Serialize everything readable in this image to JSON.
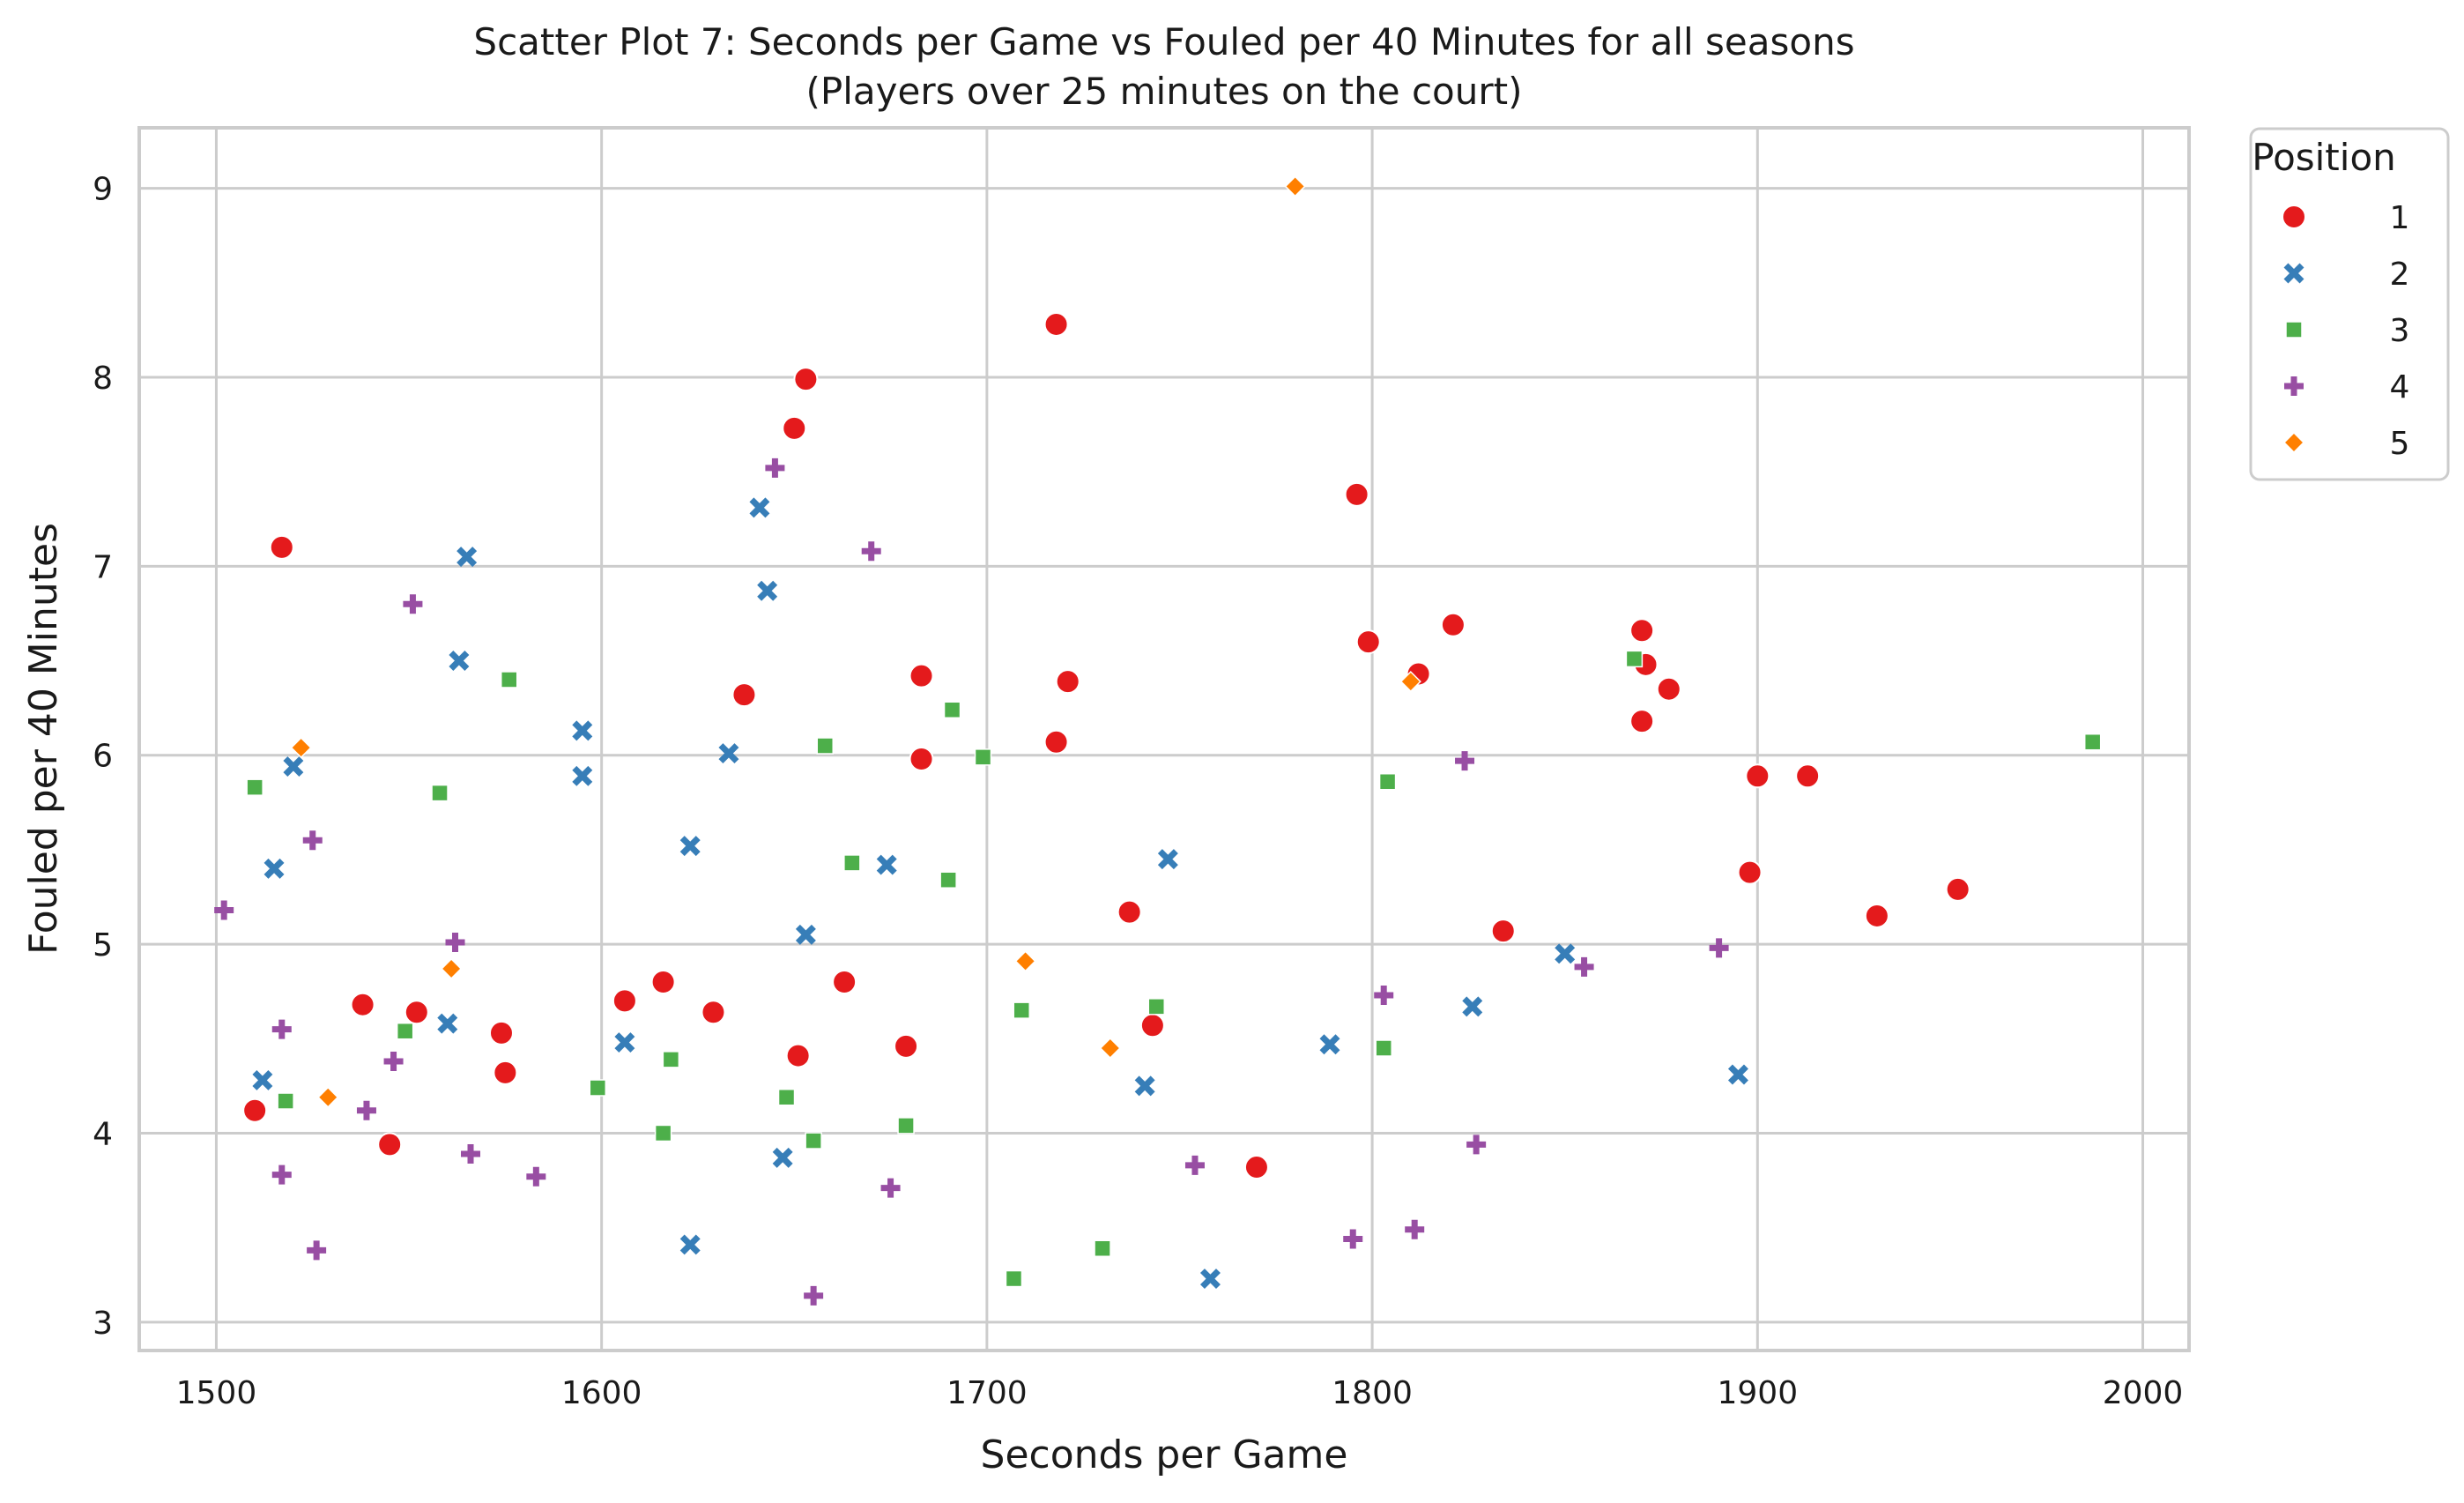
{
  "chart_data": {
    "type": "scatter",
    "title": "Scatter Plot 7: Seconds per Game vs Fouled per 40 Minutes for all seasons",
    "subtitle": "(Players over 25 minutes on the court)",
    "xlabel": "Seconds per Game",
    "ylabel": "Fouled per 40 Minutes",
    "xlim": [
      1480,
      2012
    ],
    "ylim": [
      2.85,
      9.32
    ],
    "xticks": [
      1500,
      1600,
      1700,
      1800,
      1900,
      2000
    ],
    "yticks": [
      3,
      4,
      5,
      6,
      7,
      8,
      9
    ],
    "grid": true,
    "legend": {
      "title": "Position",
      "placement": "outside-top-right"
    },
    "series": [
      {
        "name": "1",
        "marker": "circle",
        "color": "#e41a1c",
        "points": [
          [
            1510,
            4.12
          ],
          [
            1517,
            7.1
          ],
          [
            1538,
            4.68
          ],
          [
            1545,
            3.94
          ],
          [
            1552,
            4.64
          ],
          [
            1574,
            4.53
          ],
          [
            1575,
            4.32
          ],
          [
            1606,
            4.7
          ],
          [
            1616,
            4.8
          ],
          [
            1629,
            4.64
          ],
          [
            1637,
            6.32
          ],
          [
            1650,
            7.73
          ],
          [
            1651,
            4.41
          ],
          [
            1653,
            7.99
          ],
          [
            1663,
            4.8
          ],
          [
            1679,
            4.46
          ],
          [
            1683,
            6.42
          ],
          [
            1683,
            5.98
          ],
          [
            1718,
            8.28
          ],
          [
            1718,
            6.07
          ],
          [
            1721,
            6.39
          ],
          [
            1737,
            5.17
          ],
          [
            1743,
            4.57
          ],
          [
            1770,
            3.82
          ],
          [
            1796,
            7.38
          ],
          [
            1799,
            6.6
          ],
          [
            1812,
            6.43
          ],
          [
            1821,
            6.69
          ],
          [
            1834,
            5.07
          ],
          [
            1870,
            6.66
          ],
          [
            1871,
            6.48
          ],
          [
            1870,
            6.18
          ],
          [
            1877,
            6.35
          ],
          [
            1898,
            5.38
          ],
          [
            1900,
            5.89
          ],
          [
            1913,
            5.89
          ],
          [
            1931,
            5.15
          ],
          [
            1952,
            5.29
          ]
        ]
      },
      {
        "name": "2",
        "marker": "x",
        "color": "#377eb8",
        "points": [
          [
            1512,
            4.28
          ],
          [
            1515,
            5.4
          ],
          [
            1520,
            5.94
          ],
          [
            1560,
            4.58
          ],
          [
            1563,
            6.5
          ],
          [
            1565,
            7.05
          ],
          [
            1595,
            6.13
          ],
          [
            1595,
            5.89
          ],
          [
            1606,
            4.48
          ],
          [
            1623,
            5.52
          ],
          [
            1623,
            3.41
          ],
          [
            1633,
            6.01
          ],
          [
            1641,
            7.31
          ],
          [
            1643,
            6.87
          ],
          [
            1647,
            3.87
          ],
          [
            1653,
            5.05
          ],
          [
            1674,
            5.42
          ],
          [
            1741,
            4.25
          ],
          [
            1747,
            5.45
          ],
          [
            1758,
            3.23
          ],
          [
            1789,
            4.47
          ],
          [
            1826,
            4.67
          ],
          [
            1850,
            4.95
          ],
          [
            1895,
            4.31
          ]
        ]
      },
      {
        "name": "3",
        "marker": "square",
        "color": "#4daf4a",
        "points": [
          [
            1510,
            5.83
          ],
          [
            1518,
            4.17
          ],
          [
            1549,
            4.54
          ],
          [
            1558,
            5.8
          ],
          [
            1576,
            6.4
          ],
          [
            1599,
            4.24
          ],
          [
            1616,
            4.0
          ],
          [
            1618,
            4.39
          ],
          [
            1648,
            4.19
          ],
          [
            1655,
            3.96
          ],
          [
            1658,
            6.05
          ],
          [
            1665,
            5.43
          ],
          [
            1679,
            4.04
          ],
          [
            1690,
            5.34
          ],
          [
            1691,
            6.24
          ],
          [
            1699,
            5.99
          ],
          [
            1707,
            3.23
          ],
          [
            1709,
            4.65
          ],
          [
            1730,
            3.39
          ],
          [
            1744,
            4.67
          ],
          [
            1803,
            4.45
          ],
          [
            1804,
            5.86
          ],
          [
            1868,
            6.51
          ],
          [
            1987,
            6.07
          ]
        ]
      },
      {
        "name": "4",
        "marker": "plus",
        "color": "#984ea3",
        "points": [
          [
            1502,
            5.18
          ],
          [
            1517,
            4.55
          ],
          [
            1517,
            3.78
          ],
          [
            1525,
            5.55
          ],
          [
            1526,
            3.38
          ],
          [
            1539,
            4.12
          ],
          [
            1546,
            4.38
          ],
          [
            1551,
            6.8
          ],
          [
            1562,
            5.01
          ],
          [
            1566,
            3.89
          ],
          [
            1583,
            3.77
          ],
          [
            1645,
            7.52
          ],
          [
            1655,
            3.14
          ],
          [
            1670,
            7.08
          ],
          [
            1675,
            3.71
          ],
          [
            1754,
            3.83
          ],
          [
            1795,
            3.44
          ],
          [
            1803,
            4.73
          ],
          [
            1811,
            3.49
          ],
          [
            1824,
            5.97
          ],
          [
            1827,
            3.94
          ],
          [
            1855,
            4.88
          ],
          [
            1890,
            4.98
          ]
        ]
      },
      {
        "name": "5",
        "marker": "diamond",
        "color": "#ff7f00",
        "points": [
          [
            1522,
            6.04
          ],
          [
            1529,
            4.19
          ],
          [
            1561,
            4.87
          ],
          [
            1710,
            4.91
          ],
          [
            1732,
            4.45
          ],
          [
            1780,
            9.01
          ],
          [
            1810,
            6.39
          ]
        ]
      }
    ]
  }
}
